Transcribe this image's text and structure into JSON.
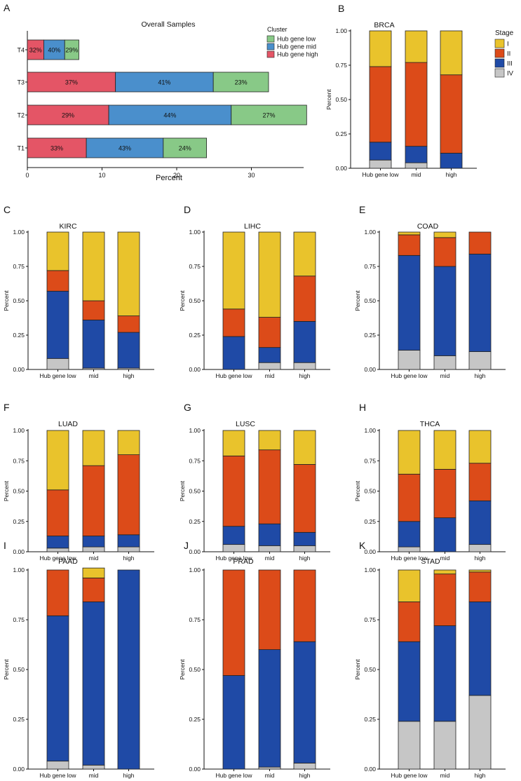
{
  "colors": {
    "hub_low": "#88c987",
    "hub_mid": "#4a8fcc",
    "hub_high": "#e45566",
    "stage_I": "#e9c32c",
    "stage_II": "#dc4b19",
    "stage_III": "#1f4aa6",
    "stage_IV": "#c6c6c6"
  },
  "stage_legend": {
    "title": "Stage",
    "labels": [
      "I",
      "II",
      "III",
      "IV"
    ]
  },
  "chart_data": [
    {
      "panel": "A",
      "type": "bar",
      "orientation": "horizontal",
      "stacked": true,
      "title": "Overall Samples",
      "xlabel": "Percent",
      "ylabel": "",
      "xlim": [
        0,
        37
      ],
      "xticks": [
        0,
        10,
        20,
        30
      ],
      "categories": [
        "T1",
        "T2",
        "T3",
        "T4"
      ],
      "legend_title": "Cluster",
      "legend_labels": [
        "Hub gene low",
        "Hub gene mid",
        "Hub gene high"
      ],
      "series": [
        {
          "name": "Hub gene high",
          "values": [
            7.9,
            10.9,
            11.8,
            2.2
          ],
          "labels": [
            "33%",
            "29%",
            "37%",
            "32%"
          ]
        },
        {
          "name": "Hub gene mid",
          "values": [
            10.3,
            16.4,
            13.1,
            2.8
          ],
          "labels": [
            "43%",
            "44%",
            "41%",
            "40%"
          ]
        },
        {
          "name": "Hub gene low",
          "values": [
            5.8,
            10.1,
            7.4,
            1.9
          ],
          "labels": [
            "24%",
            "27%",
            "23%",
            "29%"
          ]
        }
      ]
    },
    {
      "panel": "B",
      "type": "bar",
      "stacked": true,
      "title": "BRCA",
      "ylabel": "Percent",
      "categories": [
        "Hub gene low",
        "mid",
        "high"
      ],
      "yticks": [
        "0.00",
        "0.25",
        "0.50",
        "0.75",
        "1.00"
      ],
      "series": [
        {
          "name": "IV",
          "values": [
            0.06,
            0.04,
            0.0
          ]
        },
        {
          "name": "III",
          "values": [
            0.13,
            0.12,
            0.11
          ]
        },
        {
          "name": "II",
          "values": [
            0.55,
            0.61,
            0.57
          ]
        },
        {
          "name": "I",
          "values": [
            0.26,
            0.23,
            0.32
          ]
        }
      ]
    },
    {
      "panel": "C",
      "type": "bar",
      "stacked": true,
      "title": "KIRC",
      "ylabel": "Percent",
      "categories": [
        "Hub gene low",
        "mid",
        "high"
      ],
      "yticks": [
        "0.00",
        "0.25",
        "0.50",
        "0.75",
        "1.00"
      ],
      "series": [
        {
          "name": "IV",
          "values": [
            0.08,
            0.01,
            0.01
          ]
        },
        {
          "name": "III",
          "values": [
            0.49,
            0.35,
            0.26
          ]
        },
        {
          "name": "II",
          "values": [
            0.15,
            0.14,
            0.12
          ]
        },
        {
          "name": "I",
          "values": [
            0.28,
            0.5,
            0.61
          ]
        }
      ]
    },
    {
      "panel": "D",
      "type": "bar",
      "stacked": true,
      "title": "LIHC",
      "ylabel": "Percent",
      "categories": [
        "Hub gene low",
        "mid",
        "high"
      ],
      "yticks": [
        "0.00",
        "0.25",
        "0.50",
        "0.75",
        "1.00"
      ],
      "series": [
        {
          "name": "IV",
          "values": [
            0.0,
            0.05,
            0.05
          ]
        },
        {
          "name": "III",
          "values": [
            0.24,
            0.11,
            0.3
          ]
        },
        {
          "name": "II",
          "values": [
            0.2,
            0.22,
            0.33
          ]
        },
        {
          "name": "I",
          "values": [
            0.56,
            0.62,
            0.32
          ]
        }
      ]
    },
    {
      "panel": "E",
      "type": "bar",
      "stacked": true,
      "title": "COAD",
      "ylabel": "Percent",
      "categories": [
        "Hub gene low",
        "mid",
        "high"
      ],
      "yticks": [
        "0.00",
        "0.25",
        "0.50",
        "0.75",
        "1.00"
      ],
      "series": [
        {
          "name": "IV",
          "values": [
            0.14,
            0.1,
            0.13
          ]
        },
        {
          "name": "III",
          "values": [
            0.69,
            0.65,
            0.71
          ]
        },
        {
          "name": "II",
          "values": [
            0.15,
            0.21,
            0.16
          ]
        },
        {
          "name": "I",
          "values": [
            0.02,
            0.04,
            0.0
          ]
        }
      ]
    },
    {
      "panel": "F",
      "type": "bar",
      "stacked": true,
      "title": "LUAD",
      "ylabel": "Percent",
      "categories": [
        "Hub gene low",
        "mid",
        "high"
      ],
      "yticks": [
        "0.00",
        "0.25",
        "0.50",
        "0.75",
        "1.00"
      ],
      "series": [
        {
          "name": "IV",
          "values": [
            0.03,
            0.04,
            0.04
          ]
        },
        {
          "name": "III",
          "values": [
            0.1,
            0.09,
            0.1
          ]
        },
        {
          "name": "II",
          "values": [
            0.38,
            0.58,
            0.66
          ]
        },
        {
          "name": "I",
          "values": [
            0.49,
            0.29,
            0.2
          ]
        }
      ]
    },
    {
      "panel": "G",
      "type": "bar",
      "stacked": true,
      "title": "LUSC",
      "ylabel": "Percent",
      "categories": [
        "Hub gene low",
        "mid",
        "high"
      ],
      "yticks": [
        "0.00",
        "0.25",
        "0.50",
        "0.75",
        "1.00"
      ],
      "series": [
        {
          "name": "IV",
          "values": [
            0.06,
            0.05,
            0.05
          ]
        },
        {
          "name": "III",
          "values": [
            0.15,
            0.18,
            0.11
          ]
        },
        {
          "name": "II",
          "values": [
            0.58,
            0.61,
            0.56
          ]
        },
        {
          "name": "I",
          "values": [
            0.21,
            0.16,
            0.28
          ]
        }
      ]
    },
    {
      "panel": "H",
      "type": "bar",
      "stacked": true,
      "title": "THCA",
      "ylabel": "Percent",
      "categories": [
        "Hub gene low",
        "mid",
        "high"
      ],
      "yticks": [
        "0.00",
        "0.25",
        "0.50",
        "0.75",
        "1.00"
      ],
      "series": [
        {
          "name": "IV",
          "values": [
            0.04,
            0.0,
            0.06
          ]
        },
        {
          "name": "III",
          "values": [
            0.21,
            0.28,
            0.36
          ]
        },
        {
          "name": "II",
          "values": [
            0.39,
            0.4,
            0.31
          ]
        },
        {
          "name": "I",
          "values": [
            0.36,
            0.32,
            0.27
          ]
        }
      ]
    },
    {
      "panel": "I",
      "type": "bar",
      "stacked": true,
      "title": "PAAD",
      "ylabel": "Percent",
      "categories": [
        "Hub gene low",
        "mid",
        "high"
      ],
      "yticks": [
        "0.00",
        "0.25",
        "0.50",
        "0.75",
        "1.00"
      ],
      "series": [
        {
          "name": "IV",
          "values": [
            0.04,
            0.02,
            0.0
          ]
        },
        {
          "name": "III",
          "values": [
            0.73,
            0.82,
            1.0
          ]
        },
        {
          "name": "II",
          "values": [
            0.23,
            0.12,
            0.0
          ]
        },
        {
          "name": "I",
          "values": [
            0.0,
            0.05,
            0.0
          ]
        }
      ]
    },
    {
      "panel": "J",
      "type": "bar",
      "stacked": true,
      "title": "PRAD",
      "ylabel": "Percent",
      "categories": [
        "Hub gene low",
        "mid",
        "high"
      ],
      "yticks": [
        "0.00",
        "0.25",
        "0.50",
        "0.75",
        "1.00"
      ],
      "series": [
        {
          "name": "IV",
          "values": [
            0.0,
            0.01,
            0.03
          ]
        },
        {
          "name": "III",
          "values": [
            0.47,
            0.59,
            0.61
          ]
        },
        {
          "name": "II",
          "values": [
            0.53,
            0.4,
            0.36
          ]
        },
        {
          "name": "I",
          "values": [
            0.0,
            0.0,
            0.0
          ]
        }
      ]
    },
    {
      "panel": "K",
      "type": "bar",
      "stacked": true,
      "title": "STAD",
      "ylabel": "Percent",
      "categories": [
        "Hub gene low",
        "mid",
        "high"
      ],
      "yticks": [
        "0.00",
        "0.25",
        "0.50",
        "0.75",
        "1.00"
      ],
      "series": [
        {
          "name": "IV",
          "values": [
            0.24,
            0.24,
            0.37
          ]
        },
        {
          "name": "III",
          "values": [
            0.4,
            0.48,
            0.47
          ]
        },
        {
          "name": "II",
          "values": [
            0.2,
            0.26,
            0.15
          ]
        },
        {
          "name": "I",
          "values": [
            0.16,
            0.02,
            0.01
          ]
        }
      ]
    }
  ]
}
